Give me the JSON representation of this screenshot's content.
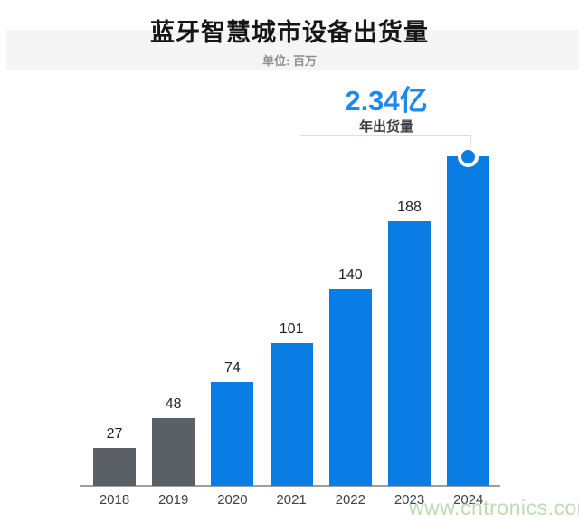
{
  "header": {
    "title": "蓝牙智慧城市设备出货量",
    "subtitle": "单位: 百万"
  },
  "callout": {
    "value": "2.34亿",
    "label": "年出货量"
  },
  "watermark": "www.cntronics.com",
  "chart_data": {
    "type": "bar",
    "title": "蓝牙智慧城市设备出货量",
    "subtitle": "单位: 百万",
    "unit": "百万",
    "categories": [
      "2018",
      "2019",
      "2020",
      "2021",
      "2022",
      "2023",
      "2024"
    ],
    "values": [
      27,
      48,
      74,
      101,
      140,
      188,
      234
    ],
    "value_labels": [
      "27",
      "48",
      "74",
      "101",
      "140",
      "188",
      ""
    ],
    "annotation": {
      "text": "2.34亿",
      "sub_text": "年出货量",
      "points_to": "2024",
      "value": 234
    },
    "highlight_index": 6,
    "muted_indices": [
      0,
      1
    ],
    "xlabel": "",
    "ylabel": "",
    "ylim": [
      0,
      240
    ],
    "grid": false,
    "legend": "none",
    "colors": {
      "bar": "#0a7de4",
      "muted_bar": "#5a6066",
      "accent_text": "#1e88f2",
      "axis": "#9aa0a6",
      "title_text": "#161616",
      "subtitle_text": "#8e8e8e",
      "label_text": "#1f2125",
      "watermark": "#bedcb2",
      "band": "#f5f5f6"
    }
  }
}
